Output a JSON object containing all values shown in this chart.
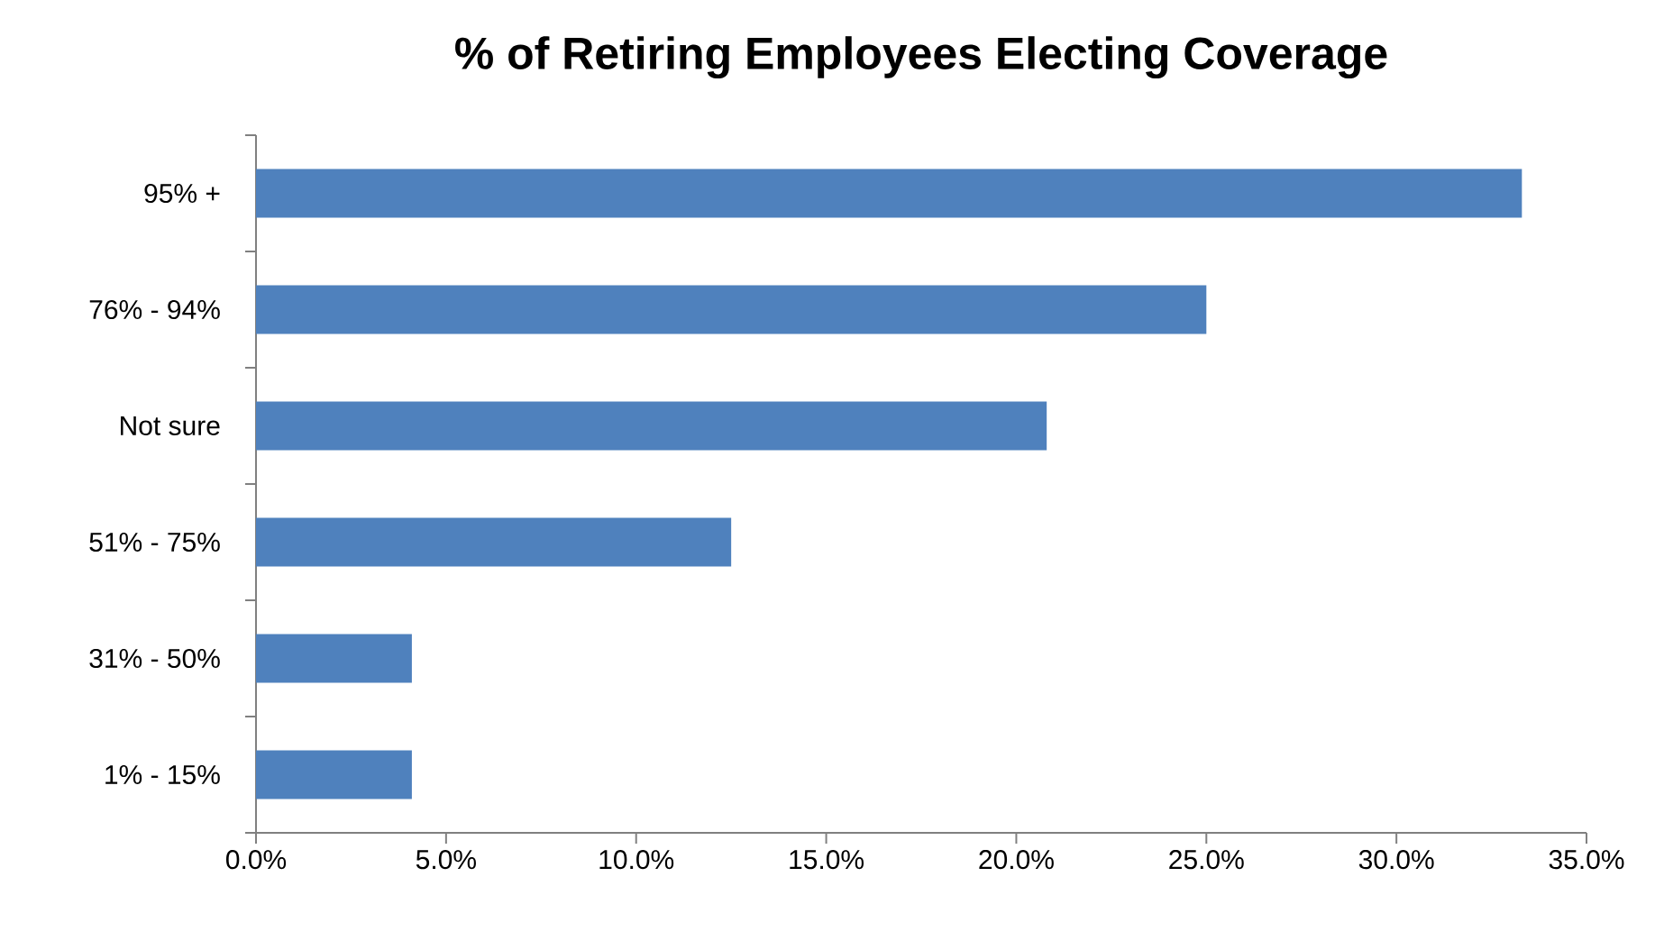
{
  "chart_data": {
    "type": "bar",
    "orientation": "horizontal",
    "title": "% of Retiring Employees Electing Coverage",
    "categories": [
      "95% +",
      "76% - 94%",
      "Not sure",
      "51% - 75%",
      "31% - 50%",
      "1% - 15%"
    ],
    "values": [
      33.3,
      25.0,
      20.8,
      12.5,
      4.1,
      4.1
    ],
    "color": "#4f81bd",
    "xlim": [
      0,
      35
    ],
    "xticks": [
      {
        "value": 0,
        "label": "0.0%"
      },
      {
        "value": 5,
        "label": "5.0%"
      },
      {
        "value": 10,
        "label": "10.0%"
      },
      {
        "value": 15,
        "label": "15.0%"
      },
      {
        "value": 20,
        "label": "20.0%"
      },
      {
        "value": 25,
        "label": "25.0%"
      },
      {
        "value": 30,
        "label": "30.0%"
      },
      {
        "value": 35,
        "label": "35.0%"
      }
    ]
  }
}
